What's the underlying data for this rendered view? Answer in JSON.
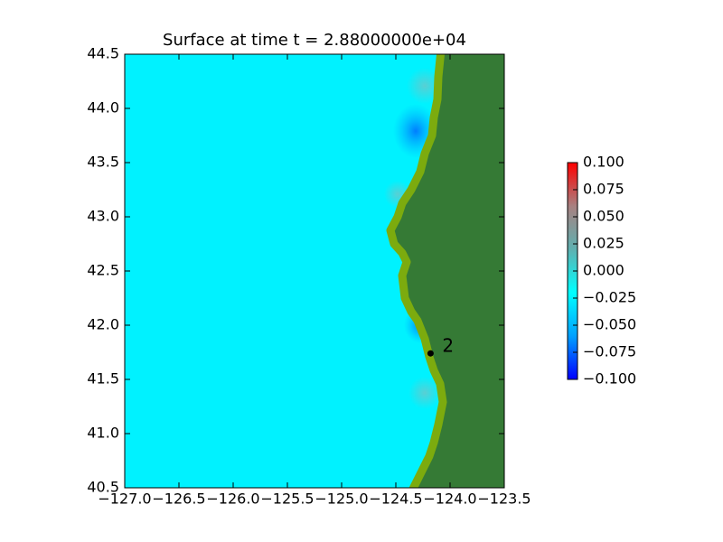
{
  "chart_data": {
    "type": "surface",
    "title": "Surface at time t = 2.88000000e+04",
    "xlim": [
      -127,
      -123.5
    ],
    "xticks": [
      {
        "value": -127,
        "label": "−127.0"
      },
      {
        "value": -126.5,
        "label": "−126.5"
      },
      {
        "value": -126,
        "label": "−126.0"
      },
      {
        "value": -125.5,
        "label": "−125.5"
      },
      {
        "value": -125,
        "label": "−125.0"
      },
      {
        "value": -124.5,
        "label": "−124.5"
      },
      {
        "value": -124,
        "label": "−124.0"
      },
      {
        "value": -123.5,
        "label": "−123.5"
      }
    ],
    "ylim": [
      40.5,
      44.5
    ],
    "yticks": [
      40.5,
      {
        "value": 41,
        "label": "41.0"
      },
      41.5,
      {
        "value": 42,
        "label": "42.0"
      },
      42.5,
      {
        "value": 43,
        "label": "43.0"
      },
      43.5,
      {
        "value": 44,
        "label": "44.0"
      },
      44.5
    ],
    "ocean_color": "#00f2ff",
    "land_color": "#357a35",
    "shore_color": "#7cab0e",
    "colorbar": {
      "clim": [
        -0.1,
        0.1
      ],
      "colormap": [
        "#0000ff",
        "#00a0ff",
        "#00ffff",
        "#5fb0b0",
        "#a88080",
        "#ff0000"
      ],
      "ticks": [
        {
          "value": -0.1,
          "label": "−0.100"
        },
        {
          "value": -0.075,
          "label": "−0.075"
        },
        {
          "value": -0.05,
          "label": "−0.050"
        },
        {
          "value": -0.025,
          "label": "−0.025"
        },
        {
          "value": 0,
          "label": "0.000"
        },
        {
          "value": 0.025,
          "label": "0.025"
        },
        {
          "value": 0.05,
          "label": "0.050"
        },
        {
          "value": 0.075,
          "label": "0.075"
        },
        {
          "value": 0.1,
          "label": "0.100"
        }
      ]
    },
    "gauges": [
      {
        "label": "2",
        "x": -124.18,
        "y": 41.74
      }
    ]
  }
}
